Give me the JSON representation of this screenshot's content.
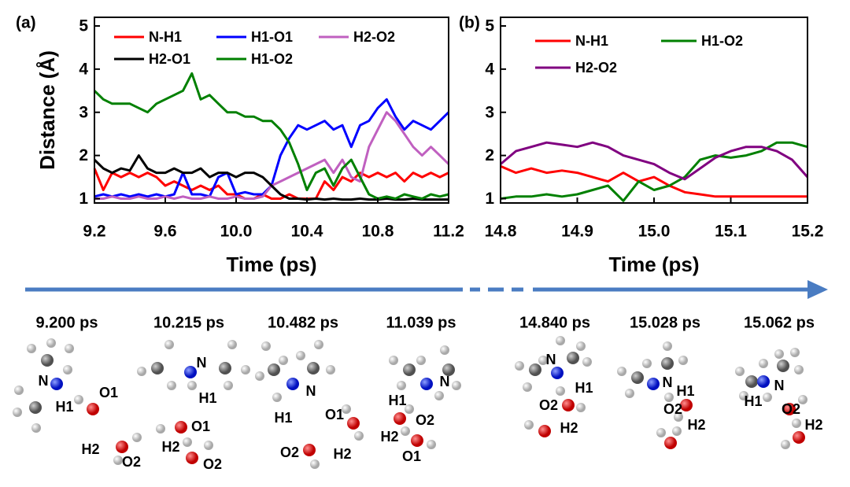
{
  "chart_data": [
    {
      "type": "line",
      "panel_label": "(a)",
      "x_label": "Time (ps)",
      "y_label": "Distance (Å)",
      "xlim": [
        9.2,
        11.2
      ],
      "xticks": [
        9.2,
        9.6,
        {
          "value": 10,
          "label": "10.0"
        },
        10.4,
        10.8,
        11.2
      ],
      "ylim": [
        0.9,
        5.2
      ],
      "yticks": [
        1,
        2,
        3,
        4,
        5
      ],
      "x": [
        9.2,
        9.25,
        9.3,
        9.35,
        9.4,
        9.45,
        9.5,
        9.55,
        9.6,
        9.65,
        9.7,
        9.75,
        9.8,
        9.85,
        9.9,
        9.95,
        10,
        10.05,
        10.1,
        10.15,
        10.2,
        10.25,
        10.3,
        10.35,
        10.4,
        10.45,
        10.5,
        10.55,
        10.6,
        10.65,
        10.7,
        10.75,
        10.8,
        10.85,
        10.9,
        10.95,
        11,
        11.05,
        11.1,
        11.15,
        11.2
      ],
      "series": [
        {
          "name": "N-H1",
          "color": "#ff0000",
          "values": [
            1.7,
            1.2,
            1.6,
            1.5,
            1.6,
            1.5,
            1.6,
            1.5,
            1.3,
            1.4,
            1.3,
            1.2,
            1.3,
            1.2,
            1.3,
            1.1,
            1.1,
            1.0,
            1.0,
            1.1,
            1.0,
            1.0,
            1.1,
            1.0,
            1.0,
            1.0,
            1.4,
            1.2,
            1.5,
            1.4,
            1.6,
            1.5,
            1.6,
            1.5,
            1.6,
            1.4,
            1.6,
            1.5,
            1.6,
            1.5,
            1.6
          ]
        },
        {
          "name": "H1-O1",
          "color": "#0000ff",
          "values": [
            1.05,
            1.1,
            1.05,
            1.1,
            1.05,
            1.1,
            1.05,
            1.1,
            1.05,
            1.1,
            1.6,
            1.1,
            1.1,
            1.05,
            1.5,
            1.6,
            1.1,
            1.15,
            1.1,
            1.1,
            1.3,
            2.0,
            2.4,
            2.7,
            2.6,
            2.7,
            2.8,
            2.6,
            2.7,
            2.2,
            2.7,
            2.8,
            3.1,
            3.3,
            2.9,
            2.6,
            2.8,
            2.7,
            2.6,
            2.8,
            3.0
          ]
        },
        {
          "name": "H2-O2",
          "color": "#c060c0",
          "values": [
            1.0,
            1.0,
            1.05,
            1.0,
            1.0,
            1.05,
            1.0,
            1.0,
            1.05,
            1.0,
            1.05,
            1.0,
            1.0,
            1.05,
            1.0,
            1.0,
            1.05,
            1.0,
            1.0,
            1.05,
            1.3,
            1.4,
            1.5,
            1.6,
            1.7,
            1.8,
            1.9,
            1.6,
            1.9,
            1.5,
            1.4,
            2.2,
            2.6,
            3.0,
            2.8,
            2.5,
            2.2,
            2.0,
            2.2,
            2.0,
            1.8
          ]
        },
        {
          "name": "H2-O1",
          "color": "#000000",
          "values": [
            1.9,
            1.7,
            1.6,
            1.7,
            1.65,
            2.0,
            1.7,
            1.6,
            1.6,
            1.7,
            1.6,
            1.6,
            1.7,
            1.5,
            1.6,
            1.6,
            1.5,
            1.6,
            1.6,
            1.5,
            1.3,
            1.1,
            1.0,
            1.0,
            0.98,
            1.0,
            0.98,
            1.0,
            0.98,
            0.98,
            1.0,
            0.98,
            0.98,
            1.0,
            0.98,
            0.98,
            1.0,
            0.98,
            0.98,
            0.98,
            0.98
          ]
        },
        {
          "name": "H1-O2",
          "color": "#008000",
          "values": [
            3.5,
            3.3,
            3.2,
            3.2,
            3.2,
            3.1,
            3.0,
            3.2,
            3.3,
            3.4,
            3.5,
            3.9,
            3.3,
            3.4,
            3.2,
            3.0,
            3.0,
            2.9,
            2.9,
            2.8,
            2.8,
            2.6,
            2.3,
            1.8,
            1.2,
            1.6,
            1.7,
            1.3,
            1.7,
            1.9,
            1.5,
            1.1,
            1.0,
            1.05,
            1.0,
            1.1,
            1.05,
            1.0,
            1.1,
            1.05,
            1.1
          ]
        }
      ]
    },
    {
      "type": "line",
      "panel_label": "(b)",
      "x_label": "Time (ps)",
      "xlim": [
        14.8,
        15.2
      ],
      "xticks": [
        14.8,
        14.9,
        {
          "value": 15,
          "label": "15.0"
        },
        15.1,
        15.2
      ],
      "ylim": [
        0.9,
        5.2
      ],
      "yticks": [
        1,
        2,
        3,
        4,
        5
      ],
      "x": [
        14.8,
        14.82,
        14.84,
        14.86,
        14.88,
        14.9,
        14.92,
        14.94,
        14.96,
        14.98,
        15,
        15.02,
        15.04,
        15.06,
        15.08,
        15.1,
        15.12,
        15.14,
        15.16,
        15.18,
        15.2
      ],
      "series": [
        {
          "name": "N-H1",
          "color": "#ff0000",
          "values": [
            1.75,
            1.6,
            1.7,
            1.6,
            1.65,
            1.6,
            1.5,
            1.4,
            1.6,
            1.4,
            1.5,
            1.3,
            1.15,
            1.1,
            1.05,
            1.05,
            1.05,
            1.05,
            1.05,
            1.05,
            1.05
          ]
        },
        {
          "name": "H1-O2",
          "color": "#008000",
          "values": [
            1.0,
            1.05,
            1.05,
            1.1,
            1.05,
            1.1,
            1.2,
            1.3,
            0.95,
            1.4,
            1.2,
            1.3,
            1.5,
            1.9,
            2.0,
            1.95,
            2.0,
            2.1,
            2.3,
            2.3,
            2.2
          ]
        },
        {
          "name": "H2-O2",
          "color": "#800080",
          "values": [
            1.8,
            2.1,
            2.2,
            2.3,
            2.25,
            2.2,
            2.3,
            2.2,
            2.0,
            1.9,
            1.8,
            1.6,
            1.45,
            1.7,
            1.95,
            2.1,
            2.2,
            2.2,
            2.1,
            1.9,
            1.5
          ]
        }
      ]
    }
  ],
  "snapshots": [
    {
      "time": "9.200 ps",
      "labels": [
        "N",
        "H1",
        "O1",
        "H2",
        "O2"
      ]
    },
    {
      "time": "10.215 ps",
      "labels": [
        "N",
        "H1",
        "O1",
        "H2",
        "O2"
      ]
    },
    {
      "time": "10.482 ps",
      "labels": [
        "N",
        "H1",
        "O1",
        "O2",
        "H2"
      ]
    },
    {
      "time": "11.039 ps",
      "labels": [
        "N",
        "H1",
        "O2",
        "H2",
        "O1"
      ]
    },
    {
      "time": "14.840 ps",
      "labels": [
        "N",
        "H1",
        "O2",
        "H2"
      ]
    },
    {
      "time": "15.028 ps",
      "labels": [
        "N",
        "H1",
        "O2",
        "H2"
      ]
    },
    {
      "time": "15.062 ps",
      "labels": [
        "N",
        "H1",
        "O2",
        "H2"
      ]
    }
  ]
}
